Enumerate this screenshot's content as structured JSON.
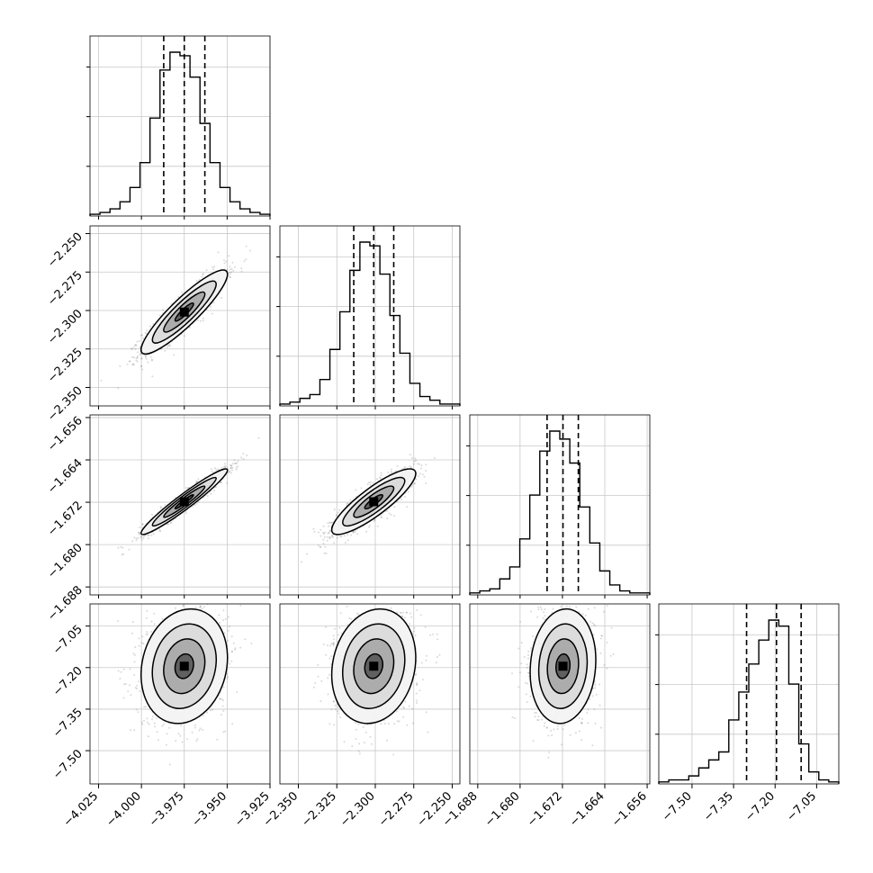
{
  "chart_data": {
    "type": "corner",
    "title": "",
    "grid": true,
    "parameters": [
      {
        "name": "",
        "range": [
          -4.03,
          -3.925
        ],
        "ticks": [
          -4.025,
          -4.0,
          -3.975,
          -3.95,
          -3.925
        ],
        "tick_labels": [
          "−4.025",
          "−4.000",
          "−3.975",
          "−3.950",
          "−3.925"
        ],
        "quantiles": [
          -3.987,
          -3.975,
          -3.963
        ],
        "hist": [
          1,
          2,
          4,
          8,
          16,
          30,
          55,
          82,
          92,
          90,
          78,
          52,
          30,
          16,
          8,
          4,
          2,
          1
        ]
      },
      {
        "name": "",
        "range": [
          -2.362,
          -2.245
        ],
        "ticks": [
          -2.35,
          -2.325,
          -2.3,
          -2.275,
          -2.25
        ],
        "tick_labels": [
          "−2.350",
          "−2.325",
          "−2.300",
          "−2.275",
          "−2.250"
        ],
        "quantiles": [
          -2.314,
          -2.301,
          -2.288
        ],
        "hist": [
          1,
          2,
          4,
          6,
          14,
          30,
          50,
          72,
          87,
          85,
          70,
          48,
          28,
          12,
          5,
          3,
          1,
          1
        ]
      },
      {
        "name": "",
        "range": [
          -1.6895,
          -1.6555
        ],
        "ticks": [
          -1.688,
          -1.68,
          -1.672,
          -1.664,
          -1.656
        ],
        "tick_labels": [
          "−1.688",
          "−1.680",
          "−1.672",
          "−1.664",
          "−1.656"
        ],
        "quantiles": [
          -1.6749,
          -1.6719,
          -1.669
        ],
        "hist": [
          1,
          2,
          3,
          8,
          14,
          28,
          50,
          72,
          82,
          78,
          66,
          44,
          26,
          12,
          5,
          2,
          1,
          1
        ]
      },
      {
        "name": "",
        "range": [
          -7.62,
          -6.97
        ],
        "ticks": [
          -7.5,
          -7.35,
          -7.2,
          -7.05
        ],
        "tick_labels": [
          "−7.50",
          "−7.35",
          "−7.20",
          "−7.05"
        ],
        "quantiles": [
          -7.303,
          -7.195,
          -7.106
        ],
        "hist": [
          1,
          2,
          2,
          4,
          8,
          12,
          16,
          32,
          46,
          60,
          72,
          82,
          79,
          50,
          20,
          6,
          2,
          1
        ]
      }
    ],
    "correlations": [
      [
        1.0,
        0.9,
        0.96,
        0.15
      ],
      [
        0.9,
        1.0,
        0.86,
        0.15
      ],
      [
        0.96,
        0.86,
        1.0,
        0.1
      ],
      [
        0.15,
        0.15,
        0.1,
        1.0
      ]
    ]
  }
}
